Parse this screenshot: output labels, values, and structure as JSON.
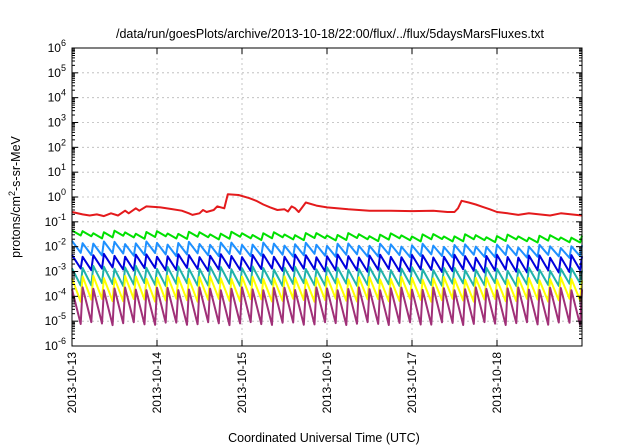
{
  "chart_data": {
    "type": "line",
    "title": "/data/run/goesPlots/archive/2013-10-18/22:00/flux/../flux/5daysMarsFluxes.txt",
    "xlabel": "Coordinated Universal Time (UTC)",
    "ylabel": {
      "pre": "protons/cm",
      "sup": "2",
      "post": "-s-sr-MeV"
    },
    "x_range": [
      "2013-10-13",
      "2013-10-19"
    ],
    "x_ticks": [
      "2013-10-13",
      "2013-10-14",
      "2013-10-15",
      "2013-10-16",
      "2013-10-17",
      "2013-10-18"
    ],
    "y_scale": "log",
    "y_range": [
      1e-06,
      1000000.0
    ],
    "y_ticks": [
      {
        "value": 1e-06,
        "base": "10",
        "exp": "-6"
      },
      {
        "value": 1e-05,
        "base": "10",
        "exp": "-5"
      },
      {
        "value": 0.0001,
        "base": "10",
        "exp": "-4"
      },
      {
        "value": 0.001,
        "base": "10",
        "exp": "-3"
      },
      {
        "value": 0.01,
        "base": "10",
        "exp": "-2"
      },
      {
        "value": 0.1,
        "base": "10",
        "exp": "-1"
      },
      {
        "value": 1,
        "base": "10",
        "exp": "0"
      },
      {
        "value": 10,
        "base": "10",
        "exp": "1"
      },
      {
        "value": 100,
        "base": "10",
        "exp": "2"
      },
      {
        "value": 1000,
        "base": "10",
        "exp": "3"
      },
      {
        "value": 10000,
        "base": "10",
        "exp": "4"
      },
      {
        "value": 100000,
        "base": "10",
        "exp": "5"
      },
      {
        "value": 1000000,
        "base": "10",
        "exp": "6"
      }
    ],
    "grid": true,
    "series": [
      {
        "color": "#e41a1c",
        "pattern": "trend",
        "points": [
          [
            "2013-10-13 00:00",
            0.25
          ],
          [
            "2013-10-13 03:00",
            0.2
          ],
          [
            "2013-10-13 05:00",
            0.18
          ],
          [
            "2013-10-13 07:00",
            0.2
          ],
          [
            "2013-10-13 09:00",
            0.17
          ],
          [
            "2013-10-13 11:00",
            0.22
          ],
          [
            "2013-10-13 13:00",
            0.18
          ],
          [
            "2013-10-13 15:00",
            0.28
          ],
          [
            "2013-10-13 16:00",
            0.22
          ],
          [
            "2013-10-13 18:00",
            0.35
          ],
          [
            "2013-10-13 19:00",
            0.28
          ],
          [
            "2013-10-13 21:00",
            0.42
          ],
          [
            "2013-10-14 01:00",
            0.38
          ],
          [
            "2013-10-14 04:00",
            0.33
          ],
          [
            "2013-10-14 07:00",
            0.28
          ],
          [
            "2013-10-14 09:00",
            0.22
          ],
          [
            "2013-10-14 10:00",
            0.19
          ],
          [
            "2013-10-14 12:00",
            0.22
          ],
          [
            "2013-10-14 13:00",
            0.3
          ],
          [
            "2013-10-14 14:00",
            0.25
          ],
          [
            "2013-10-14 16:00",
            0.3
          ],
          [
            "2013-10-14 17:00",
            0.42
          ],
          [
            "2013-10-14 19:00",
            0.35
          ],
          [
            "2013-10-14 20:00",
            1.3
          ],
          [
            "2013-10-14 23:00",
            1.2
          ],
          [
            "2013-10-15 02:00",
            0.9
          ],
          [
            "2013-10-15 04:00",
            0.7
          ],
          [
            "2013-10-15 06:00",
            0.5
          ],
          [
            "2013-10-15 08:00",
            0.38
          ],
          [
            "2013-10-15 10:00",
            0.3
          ],
          [
            "2013-10-15 12:00",
            0.32
          ],
          [
            "2013-10-15 13:00",
            0.26
          ],
          [
            "2013-10-15 14:00",
            0.42
          ],
          [
            "2013-10-15 15:00",
            0.35
          ],
          [
            "2013-10-15 16:00",
            0.25
          ],
          [
            "2013-10-15 17:00",
            0.38
          ],
          [
            "2013-10-15 18:00",
            0.6
          ],
          [
            "2013-10-15 21:00",
            0.45
          ],
          [
            "2013-10-16 00:00",
            0.38
          ],
          [
            "2013-10-16 06:00",
            0.32
          ],
          [
            "2013-10-16 12:00",
            0.28
          ],
          [
            "2013-10-16 18:00",
            0.28
          ],
          [
            "2013-10-17 00:00",
            0.27
          ],
          [
            "2013-10-17 06:00",
            0.28
          ],
          [
            "2013-10-17 10:00",
            0.25
          ],
          [
            "2013-10-17 12:00",
            0.25
          ],
          [
            "2013-10-17 13:00",
            0.35
          ],
          [
            "2013-10-17 14:00",
            0.7
          ],
          [
            "2013-10-17 16:00",
            0.6
          ],
          [
            "2013-10-17 18:00",
            0.5
          ],
          [
            "2013-10-17 20:00",
            0.4
          ],
          [
            "2013-10-17 22:00",
            0.32
          ],
          [
            "2013-10-18 00:00",
            0.25
          ],
          [
            "2013-10-18 03:00",
            0.22
          ],
          [
            "2013-10-18 06:00",
            0.19
          ],
          [
            "2013-10-18 09:00",
            0.22
          ],
          [
            "2013-10-18 12:00",
            0.2
          ],
          [
            "2013-10-18 15:00",
            0.18
          ],
          [
            "2013-10-18 18:00",
            0.22
          ],
          [
            "2013-10-18 21:00",
            0.2
          ],
          [
            "2013-10-19 00:00",
            0.18
          ]
        ]
      },
      {
        "color": "#00e000",
        "pattern": "sawtooth",
        "high": 0.04,
        "low": 0.025,
        "end_high": 0.025,
        "end_low": 0.016
      },
      {
        "color": "#1e90ff",
        "pattern": "sawtooth",
        "high": 0.015,
        "low": 0.005,
        "end_high": 0.01,
        "end_low": 0.004
      },
      {
        "color": "#0000dd",
        "pattern": "sawtooth",
        "high": 0.0045,
        "low": 0.0013,
        "end_high": 0.004,
        "end_low": 0.001
      },
      {
        "color": "#20b2aa",
        "pattern": "sawtooth",
        "high": 0.0015,
        "low": 0.0003,
        "end_high": 0.0012,
        "end_low": 0.0003
      },
      {
        "color": "#ffff00",
        "pattern": "sawtooth",
        "high": 0.0006,
        "low": 7e-05,
        "end_high": 0.0005,
        "end_low": 7e-05
      },
      {
        "color": "#a03078",
        "pattern": "sawtooth",
        "high": 0.0002,
        "low": 8e-06,
        "end_high": 0.0002,
        "end_low": 8e-06
      }
    ]
  }
}
